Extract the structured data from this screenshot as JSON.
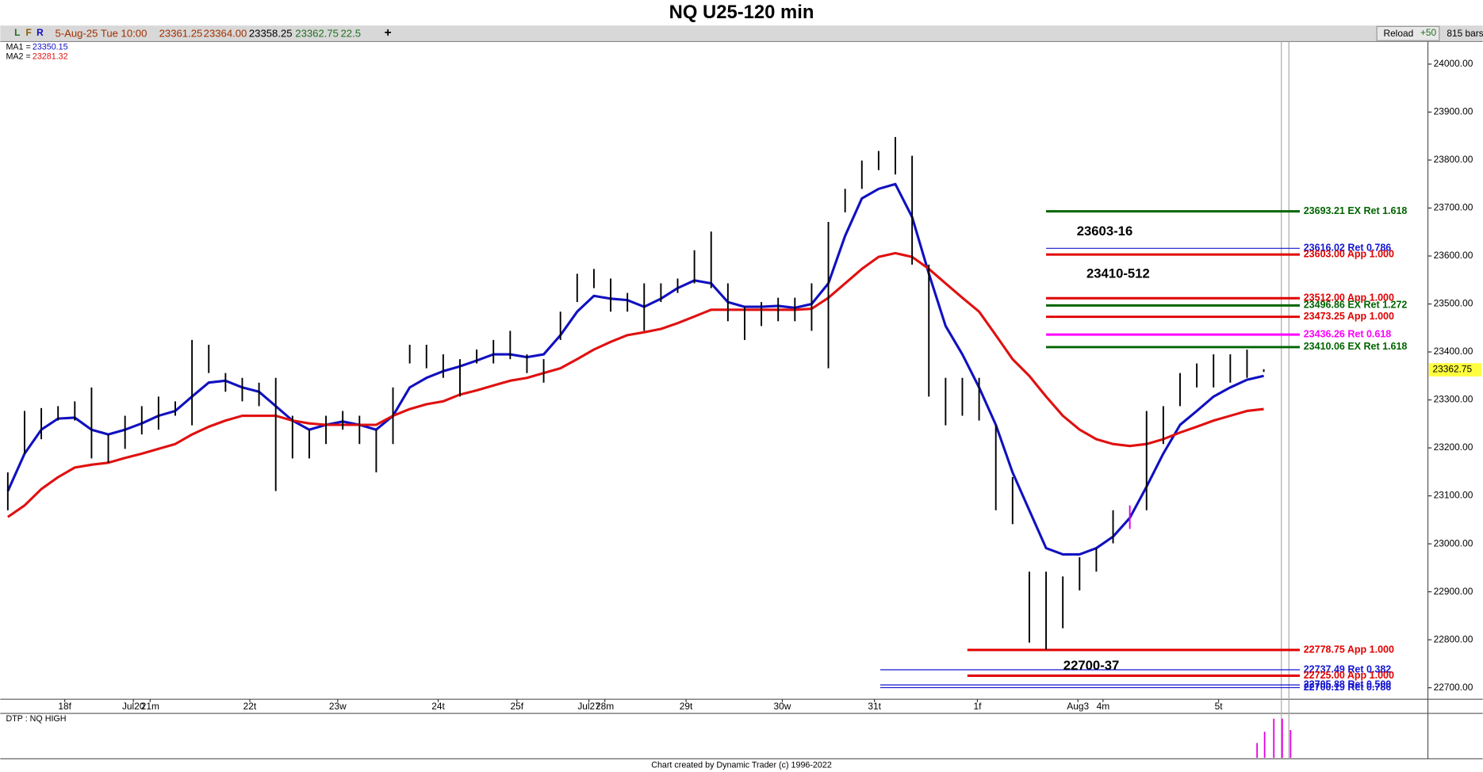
{
  "chart_data": {
    "type": "ohlc",
    "title": "NQ U25-120 min",
    "toolbar": {
      "buttons": [
        "L",
        "F",
        "R"
      ],
      "date": "5-Aug-25 Tue 10:00",
      "open": "23361.25",
      "high": "23364.00",
      "low": "23358.25",
      "close": "23362.75",
      "change": "22.5",
      "add": "+",
      "reload": "Reload",
      "step": "+50",
      "bar_count": "815 bars"
    },
    "xlim": [
      -0.45,
      84.8
    ],
    "ylim": [
      22676,
      24047
    ],
    "yticks": [
      {
        "value": 24000,
        "label": "24000.00"
      },
      {
        "value": 23900,
        "label": "23900.00"
      },
      {
        "value": 23800,
        "label": "23800.00"
      },
      {
        "value": 23700,
        "label": "23700.00"
      },
      {
        "value": 23600,
        "label": "23600.00"
      },
      {
        "value": 23500,
        "label": "23500.00"
      },
      {
        "value": 23400,
        "label": "23400.00"
      },
      {
        "value": 23300,
        "label": "23300.00"
      },
      {
        "value": 23200,
        "label": "23200.00"
      },
      {
        "value": 23100,
        "label": "23100.00"
      },
      {
        "value": 23000,
        "label": "23000.00"
      },
      {
        "value": 22900,
        "label": "22900.00"
      },
      {
        "value": 22800,
        "label": "22800.00"
      },
      {
        "value": 22700,
        "label": "22700.00"
      }
    ],
    "xticks": [
      {
        "value": 3.4,
        "label": "18f"
      },
      {
        "value": 7.5,
        "label": "Jul20"
      },
      {
        "value": 8.5,
        "label": "21m"
      },
      {
        "value": 14.45,
        "label": "22t"
      },
      {
        "value": 19.7,
        "label": "23w"
      },
      {
        "value": 25.7,
        "label": "24t"
      },
      {
        "value": 30.4,
        "label": "25f"
      },
      {
        "value": 34.7,
        "label": "Jul27"
      },
      {
        "value": 35.65,
        "label": "28m"
      },
      {
        "value": 40.5,
        "label": "29t"
      },
      {
        "value": 46.25,
        "label": "30w"
      },
      {
        "value": 51.75,
        "label": "31t"
      },
      {
        "value": 57.9,
        "label": "1f"
      },
      {
        "value": 63.9,
        "label": "Aug3"
      },
      {
        "value": 65.4,
        "label": "4m"
      },
      {
        "value": 72.3,
        "label": "5t"
      }
    ],
    "bars": {
      "high": [
        23149,
        23277,
        23283,
        23287,
        23297,
        23326,
        23228,
        23267,
        23287,
        23307,
        23297,
        23425,
        23415,
        23356,
        23346,
        23336,
        23346,
        23267,
        23238,
        23267,
        23277,
        23267,
        23238,
        23326,
        23415,
        23415,
        23395,
        23385,
        23405,
        23425,
        23444,
        23395,
        23385,
        23484,
        23563,
        23573,
        23553,
        23523,
        23543,
        23543,
        23553,
        23612,
        23651,
        23543,
        23494,
        23504,
        23513,
        23513,
        23543,
        23671,
        23740,
        23799,
        23819,
        23848,
        23809,
        23582,
        23346,
        23346,
        23346,
        23247,
        23139,
        22942,
        22942,
        22932,
        22972,
        22991,
        23070,
        23080,
        23277,
        23287,
        23356,
        23376,
        23395,
        23395,
        23405,
        23364
      ],
      "low": [
        23070,
        23188,
        23218,
        23257,
        23257,
        23178,
        23169,
        23198,
        23228,
        23238,
        23267,
        23247,
        23356,
        23317,
        23297,
        23287,
        23110,
        23178,
        23178,
        23208,
        23238,
        23208,
        23149,
        23208,
        23376,
        23366,
        23346,
        23307,
        23376,
        23376,
        23385,
        23356,
        23336,
        23425,
        23504,
        23533,
        23484,
        23484,
        23444,
        23504,
        23523,
        23543,
        23533,
        23464,
        23425,
        23454,
        23464,
        23464,
        23444,
        23366,
        23691,
        23740,
        23779,
        23770,
        23582,
        23307,
        23247,
        23267,
        23257,
        23070,
        23041,
        22794,
        22779,
        22824,
        22903,
        22942,
        23001,
        23031,
        23070,
        23208,
        23287,
        23326,
        23326,
        23336,
        23346,
        23358.25
      ]
    },
    "bar_color": "#000000",
    "highlight": {
      "bar": 67,
      "color": "#e000e0"
    },
    "series": [
      {
        "name": "MA1 =",
        "color": "#1010c0",
        "last_value": 23350.15,
        "values": [
          23110,
          23188,
          23238,
          23261,
          23263,
          23238,
          23228,
          23238,
          23251,
          23267,
          23277,
          23307,
          23336,
          23340,
          23326,
          23317,
          23287,
          23257,
          23238,
          23248,
          23255,
          23248,
          23238,
          23267,
          23326,
          23346,
          23360,
          23370,
          23382,
          23395,
          23395,
          23389,
          23395,
          23435,
          23484,
          23517,
          23511,
          23508,
          23494,
          23511,
          23533,
          23549,
          23543,
          23504,
          23494,
          23494,
          23496,
          23492,
          23500,
          23543,
          23642,
          23720,
          23740,
          23750,
          23681,
          23563,
          23454,
          23395,
          23326,
          23248,
          23149,
          23070,
          22991,
          22978,
          22978,
          22991,
          23015,
          23054,
          23119,
          23188,
          23248,
          23277,
          23307,
          23326,
          23342,
          23350
        ]
      },
      {
        "name": "MA2 =",
        "color": "#e01010",
        "last_value": 23281.32,
        "values": [
          23056,
          23080,
          23114,
          23139,
          23159,
          23165,
          23169,
          23179,
          23188,
          23198,
          23208,
          23228,
          23244,
          23257,
          23267,
          23267,
          23267,
          23257,
          23251,
          23248,
          23248,
          23248,
          23248,
          23267,
          23281,
          23291,
          23297,
          23311,
          23320,
          23330,
          23340,
          23346,
          23356,
          23366,
          23385,
          23405,
          23421,
          23435,
          23441,
          23448,
          23460,
          23474,
          23488,
          23488,
          23488,
          23488,
          23488,
          23488,
          23490,
          23513,
          23543,
          23573,
          23598,
          23606,
          23598,
          23573,
          23543,
          23513,
          23484,
          23435,
          23385,
          23350,
          23307,
          23267,
          23238,
          23218,
          23208,
          23204,
          23208,
          23218,
          23232,
          23244,
          23257,
          23267,
          23277,
          23281
        ]
      }
    ],
    "last_price": {
      "value": 23362.75,
      "label": "23362.75"
    },
    "level_end": 77.15,
    "levels": [
      {
        "value": 23693.21,
        "label": "23693.21 EX Ret 1.618",
        "color": "#006400",
        "x": 62,
        "width": 2.5
      },
      {
        "value": 23616.02,
        "label": "23616.02 Ret 0.786",
        "color": "#1515d0",
        "x": 62,
        "width": 1
      },
      {
        "value": 23603.0,
        "label": "23603.00 App 1.000",
        "color": "#e00000",
        "x": 62,
        "width": 2.5
      },
      {
        "value": 23512.0,
        "label": "23512.00 App 1.000",
        "color": "#e00000",
        "x": 62,
        "width": 2.5
      },
      {
        "value": 23496.86,
        "label": "23496.86 EX Ret 1.272",
        "color": "#006400",
        "x": 62,
        "width": 2.5
      },
      {
        "value": 23473.25,
        "label": "23473.25 App 1.000",
        "color": "#e00000",
        "x": 62,
        "width": 2.5
      },
      {
        "value": 23436.26,
        "label": "23436.26 Ret 0.618",
        "color": "#ff00ff",
        "x": 62,
        "width": 2.5
      },
      {
        "value": 23410.06,
        "label": "23410.06 EX Ret 1.618",
        "color": "#006400",
        "x": 62,
        "width": 2.5
      },
      {
        "value": 22778.75,
        "label": "22778.75 App 1.000",
        "color": "#e00000",
        "x": 57.3,
        "width": 2.5
      },
      {
        "value": 22737.49,
        "label": "22737.49 Ret 0.382",
        "color": "#1515d0",
        "x": 52.1,
        "width": 1
      },
      {
        "value": 22725.0,
        "label": "22725.00 App 1.000",
        "color": "#e00000",
        "x": 57.3,
        "width": 2.5
      },
      {
        "value": 22705.88,
        "label": "22705.88 Ret 0.500",
        "color": "#1515d0",
        "x": 52.1,
        "width": 1
      },
      {
        "value": 22700.19,
        "label": "22700.19 Ret 0.786",
        "color": "#1515d0",
        "x": 52.1,
        "width": 1
      }
    ],
    "annotations": [
      {
        "text": "23603-16",
        "x": 65.5,
        "y": 23650
      },
      {
        "text": "23410-512",
        "x": 66.3,
        "y": 23562
      },
      {
        "text": "22700-37",
        "x": 64.7,
        "y": 22745
      }
    ],
    "indicator": {
      "label": "DTP : NQ HIGH",
      "color": "#e000e0",
      "ylim": [
        0,
        50
      ],
      "x": [
        74.6,
        75.05,
        75.6,
        76.1,
        76.6
      ],
      "values": [
        17,
        30,
        45,
        45,
        32
      ]
    },
    "footer": "Chart created by Dynamic Trader  (c) 1996-2022"
  }
}
